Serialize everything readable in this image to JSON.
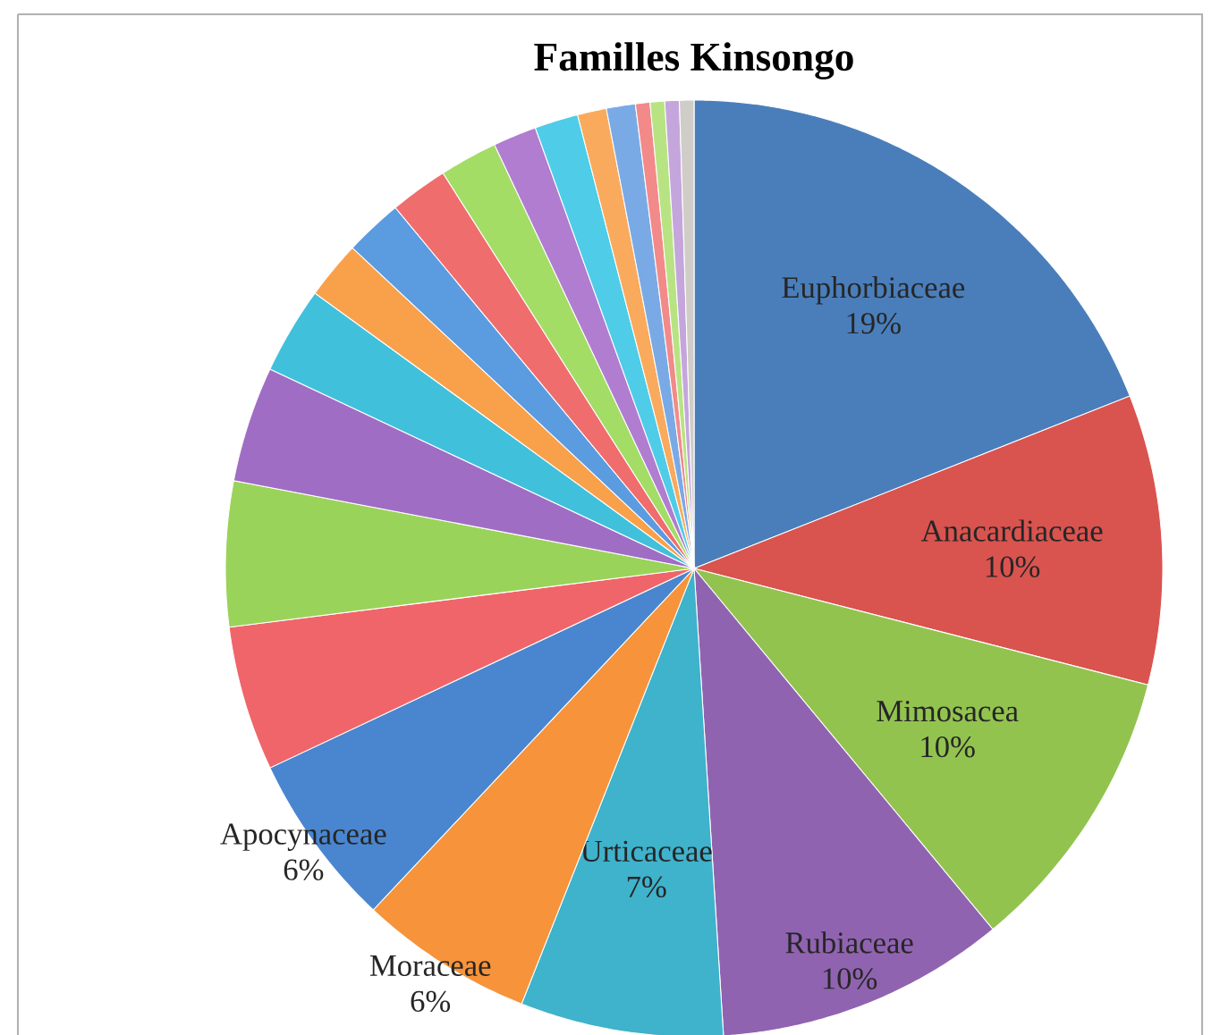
{
  "chart_data": {
    "type": "pie",
    "title": "Familles Kinsongo",
    "categories": [
      "Euphorbiaceae",
      "Anacardiaceae",
      "Mimosacea",
      "Rubiaceae",
      "Urticaceae",
      "Moraceae",
      "Apocynaceae",
      null,
      null,
      null,
      null,
      null,
      null,
      null,
      null,
      null,
      null,
      null,
      null,
      null,
      null,
      null,
      null
    ],
    "values": [
      19,
      10,
      10,
      10,
      7,
      6,
      6,
      5,
      5,
      4,
      3,
      2,
      2,
      2,
      2,
      1.5,
      1.5,
      1,
      1,
      0.5,
      0.5,
      0.5,
      0.5
    ],
    "value_labels": [
      "19%",
      "10%",
      "10%",
      "10%",
      "7%",
      "6%",
      "6%",
      null,
      null,
      null,
      null,
      null,
      null,
      null,
      null,
      null,
      null,
      null,
      null,
      null,
      null,
      null,
      null
    ],
    "colors": [
      "#4a7ebb",
      "#d9534f",
      "#93c34f",
      "#9063b0",
      "#3fb2cc",
      "#f7933a",
      "#4a86cf",
      "#f0656a",
      "#9ad35a",
      "#a06dc4",
      "#41c0dc",
      "#f9a04b",
      "#5b9be0",
      "#f06d6d",
      "#a3dd66",
      "#b07dd0",
      "#4fcce8",
      "#f9aa5c",
      "#7aaae6",
      "#f28a8a",
      "#b8e382",
      "#c4a6dc",
      "#d0ccc8"
    ]
  }
}
